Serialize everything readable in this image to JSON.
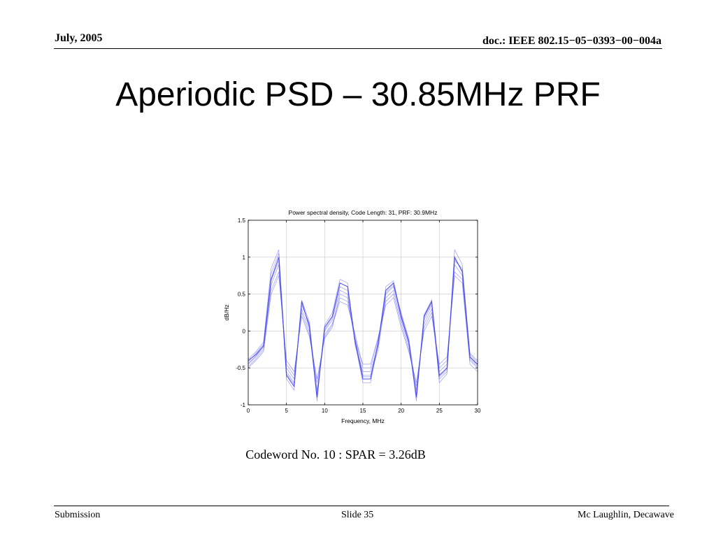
{
  "header": {
    "date": "July, 2005",
    "doc_id": "doc.: IEEE 802.15−05−0393−00−004a"
  },
  "slide": {
    "title": "Aperiodic PSD – 30.85MHz PRF",
    "caption": "Codeword No. 10 : SPAR = 3.26dB"
  },
  "footer": {
    "left": "Submission",
    "center": "Slide 35",
    "right": "Mc Laughlin, Decawave"
  },
  "colors": {
    "series": "#4a4af0",
    "grid": "#c8c8c8"
  },
  "chart_data": {
    "type": "line",
    "title": "Power spectral density, Code Length: 31, PRF:  30.9MHz",
    "xlabel": "Frequency, MHz",
    "ylabel": "dB/Hz",
    "xlim": [
      0,
      30
    ],
    "ylim": [
      -1,
      1.5
    ],
    "grid": true,
    "xticks": [
      "0",
      "5",
      "10",
      "15",
      "20",
      "25",
      "30"
    ],
    "yticks": [
      "1.5",
      "1",
      "0.5",
      "0",
      "-0.5",
      "-1"
    ],
    "x": [
      0,
      1,
      2,
      3,
      4,
      5,
      6,
      7,
      8,
      9,
      10,
      11,
      12,
      13,
      14,
      15,
      16,
      17,
      18,
      19,
      20,
      21,
      22,
      23,
      24,
      25,
      26,
      27,
      28,
      29,
      30
    ],
    "series": [
      {
        "values": [
          -0.4,
          -0.32,
          -0.2,
          0.7,
          1.0,
          -0.6,
          -0.75,
          0.4,
          0.05,
          -0.9,
          0.05,
          0.2,
          0.65,
          0.6,
          -0.15,
          -0.65,
          -0.65,
          -0.15,
          0.55,
          0.65,
          0.2,
          -0.15,
          -0.9,
          0.2,
          0.4,
          -0.6,
          -0.5,
          1.0,
          0.8,
          -0.35,
          -0.45
        ]
      },
      {
        "values": [
          -0.42,
          -0.3,
          -0.18,
          0.78,
          1.05,
          -0.5,
          -0.65,
          0.35,
          0.1,
          -0.8,
          0.0,
          0.15,
          0.55,
          0.5,
          -0.2,
          -0.55,
          -0.55,
          -0.2,
          0.5,
          0.6,
          0.25,
          -0.1,
          -0.8,
          0.15,
          0.35,
          -0.55,
          -0.45,
          0.95,
          0.85,
          -0.3,
          -0.4
        ]
      },
      {
        "values": [
          -0.45,
          -0.35,
          -0.22,
          0.62,
          0.9,
          -0.55,
          -0.7,
          0.3,
          0.0,
          -0.85,
          -0.05,
          0.1,
          0.45,
          0.4,
          -0.1,
          -0.6,
          -0.6,
          -0.25,
          0.45,
          0.55,
          0.15,
          -0.2,
          -0.85,
          0.1,
          0.3,
          -0.65,
          -0.55,
          0.9,
          0.75,
          -0.38,
          -0.48
        ]
      },
      {
        "values": [
          -0.48,
          -0.38,
          -0.25,
          0.55,
          0.8,
          -0.45,
          -0.6,
          0.25,
          -0.05,
          -0.7,
          -0.08,
          0.08,
          0.4,
          0.35,
          -0.05,
          -0.5,
          -0.5,
          -0.1,
          0.4,
          0.5,
          0.1,
          -0.25,
          -0.75,
          0.05,
          0.25,
          -0.5,
          -0.4,
          0.8,
          0.7,
          -0.4,
          -0.5
        ]
      },
      {
        "values": [
          -0.38,
          -0.28,
          -0.15,
          0.85,
          1.1,
          -0.65,
          -0.8,
          0.42,
          0.12,
          -0.95,
          0.08,
          0.25,
          0.7,
          0.65,
          -0.18,
          -0.7,
          -0.7,
          -0.18,
          0.6,
          0.68,
          0.22,
          -0.12,
          -0.95,
          0.22,
          0.42,
          -0.7,
          -0.58,
          1.1,
          0.9,
          -0.32,
          -0.42
        ]
      },
      {
        "values": [
          -0.5,
          -0.4,
          -0.28,
          0.5,
          0.75,
          -0.4,
          -0.55,
          0.2,
          -0.08,
          -0.65,
          -0.1,
          0.05,
          0.5,
          0.45,
          -0.12,
          -0.45,
          -0.45,
          -0.08,
          0.35,
          0.45,
          0.05,
          -0.28,
          -0.7,
          0.0,
          0.2,
          -0.45,
          -0.35,
          0.75,
          0.65,
          -0.45,
          -0.55
        ]
      },
      {
        "values": [
          -0.44,
          -0.34,
          -0.2,
          0.68,
          0.95,
          -0.58,
          -0.72,
          0.38,
          0.08,
          -0.88,
          0.02,
          0.18,
          0.6,
          0.55,
          -0.14,
          -0.62,
          -0.62,
          -0.16,
          0.52,
          0.62,
          0.18,
          -0.16,
          -0.88,
          0.18,
          0.38,
          -0.62,
          -0.52,
          0.98,
          0.82,
          -0.36,
          -0.46
        ]
      }
    ]
  }
}
